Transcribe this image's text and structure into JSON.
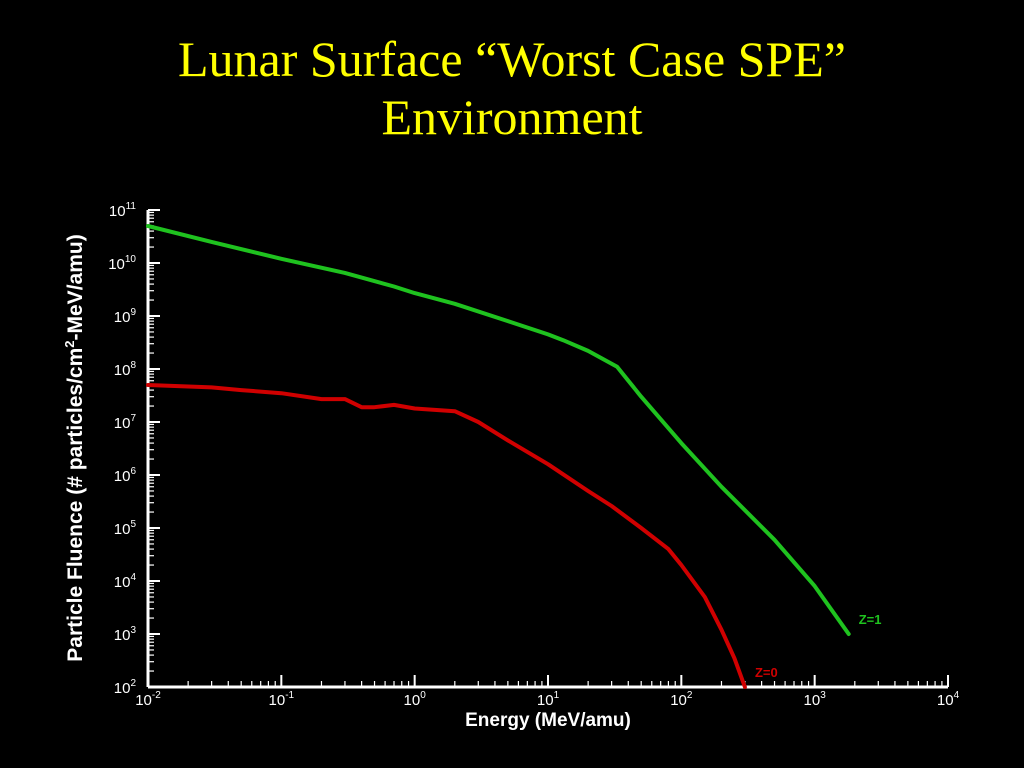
{
  "slide": {
    "title_line1": "Lunar Surface “Worst Case SPE”",
    "title_line2": "Environment",
    "title_color": "#FFFF00",
    "background": "#000000"
  },
  "chart_data": {
    "type": "line",
    "title": "",
    "xlabel": "Energy (MeV/amu)",
    "ylabel_pre": "Particle Fluence (# particles/cm",
    "ylabel_sup": "2",
    "ylabel_post": "-MeV/amu)",
    "xscale": "log",
    "yscale": "log",
    "xlim": [
      0.01,
      10000
    ],
    "ylim": [
      100,
      100000000000
    ],
    "x_ticks": [
      {
        "base": "10",
        "exp": "-2"
      },
      {
        "base": "10",
        "exp": "-1"
      },
      {
        "base": "10",
        "exp": "0"
      },
      {
        "base": "10",
        "exp": "1"
      },
      {
        "base": "10",
        "exp": "2"
      },
      {
        "base": "10",
        "exp": "3"
      },
      {
        "base": "10",
        "exp": "4"
      }
    ],
    "y_ticks": [
      {
        "base": "10",
        "exp": "2"
      },
      {
        "base": "10",
        "exp": "3"
      },
      {
        "base": "10",
        "exp": "4"
      },
      {
        "base": "10",
        "exp": "5"
      },
      {
        "base": "10",
        "exp": "6"
      },
      {
        "base": "10",
        "exp": "7"
      },
      {
        "base": "10",
        "exp": "8"
      },
      {
        "base": "10",
        "exp": "9"
      },
      {
        "base": "10",
        "exp": "10"
      },
      {
        "base": "10",
        "exp": "11"
      }
    ],
    "grid": false,
    "axis_color": "#FFFFFF",
    "series": [
      {
        "name": "Z=1",
        "color": "#1FC21F",
        "x": [
          0.01,
          0.03,
          0.1,
          0.3,
          0.7,
          1.0,
          2.0,
          5.0,
          10,
          13,
          20,
          33,
          50,
          100,
          200,
          500,
          1000,
          1800
        ],
        "y": [
          50000000000,
          25000000000,
          12000000000,
          6500000000,
          3600000000,
          2700000000,
          1700000000,
          800000000,
          450000000,
          350000000,
          220000000,
          110000000,
          30000000,
          4000000,
          600000,
          60000,
          8000,
          1000
        ]
      },
      {
        "name": "Z=0",
        "color": "#D00000",
        "x": [
          0.01,
          0.03,
          0.05,
          0.1,
          0.2,
          0.3,
          0.4,
          0.5,
          0.7,
          1.0,
          2.0,
          3.0,
          5.0,
          10,
          20,
          30,
          50,
          80,
          100,
          150,
          200,
          250,
          300
        ],
        "y": [
          50000000,
          45000000,
          40000000,
          35000000,
          27000000,
          27000000,
          19000000,
          19000000,
          21000000,
          18000000,
          16000000,
          10000000,
          4500000,
          1600000,
          500000,
          260000,
          100000,
          40000,
          20000,
          5000,
          1200,
          350,
          100
        ]
      }
    ]
  }
}
